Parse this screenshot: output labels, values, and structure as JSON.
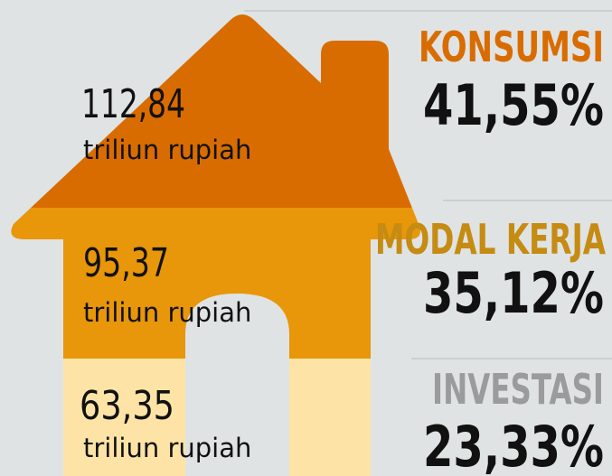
{
  "segments": [
    {
      "amount": "112,84",
      "unit": "triliun rupiah",
      "category": "KONSUMSI",
      "percent": "41,55%"
    },
    {
      "amount": "95,37",
      "unit": "triliun rupiah",
      "category": "MODAL KERJA",
      "percent": "35,12%"
    },
    {
      "amount": "63,35",
      "unit": "triliun rupiah",
      "category": "INVESTASI",
      "percent": "23,33%"
    }
  ]
}
